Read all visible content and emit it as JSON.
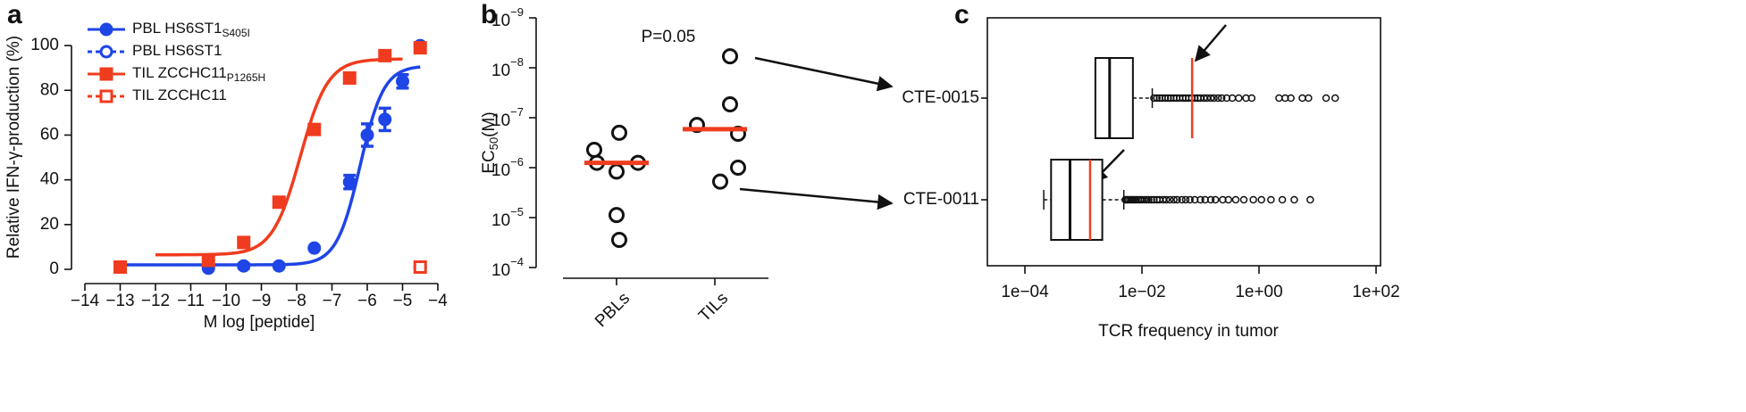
{
  "chart_data": [
    {
      "type": "dose-response",
      "panel": "a",
      "x_label": "M log [peptide]",
      "y_label": "Relative IFN-γ-production (%)",
      "xlim": [
        -14,
        -4
      ],
      "xticks": [
        {
          "value": -14,
          "label": "−14"
        },
        {
          "value": -13,
          "label": "−13"
        },
        {
          "value": -12,
          "label": "−12"
        },
        {
          "value": -11,
          "label": "−11"
        },
        {
          "value": -10,
          "label": "−10"
        },
        {
          "value": -9,
          "label": "−9"
        },
        {
          "value": -8,
          "label": "−8"
        },
        {
          "value": -7,
          "label": "−7"
        },
        {
          "value": -6,
          "label": "−6"
        },
        {
          "value": -5,
          "label": "−5"
        },
        {
          "value": -4,
          "label": "−4"
        }
      ],
      "ylim": [
        0,
        110
      ],
      "yticks": [
        0,
        20,
        40,
        60,
        80,
        100
      ],
      "series": [
        {
          "name": "PBL HS6ST1",
          "name_sub": "S405I",
          "color": "#1f45e6",
          "marker": "circle",
          "filled": true,
          "x": [
            -13,
            -10.5,
            -9.5,
            -8.5,
            -7.5,
            -6.5,
            -6,
            -5.5,
            -5,
            -4.5
          ],
          "values": [
            1,
            0.5,
            1.5,
            1.5,
            9.5,
            39,
            60,
            67,
            84,
            100
          ],
          "errors": [
            0,
            0,
            1,
            0,
            0,
            3,
            5,
            5,
            3,
            0
          ],
          "fit": {
            "bottom": 2,
            "top": 91,
            "log_ec50": -6.2,
            "hill": 1.3,
            "from": -13,
            "to": -4.5
          }
        },
        {
          "name": "PBL HS6ST1",
          "color": "#1f45e6",
          "marker": "circle",
          "filled": false,
          "x": [
            -4.5
          ],
          "values": [
            1
          ]
        },
        {
          "name": "TIL ZCCHC11",
          "name_sub": "P1265H",
          "color": "#f03c1e",
          "marker": "square",
          "filled": true,
          "x": [
            -13,
            -10.5,
            -9.5,
            -8.5,
            -7.5,
            -6.5,
            -5.5,
            -4.5
          ],
          "values": [
            1,
            4,
            12,
            30,
            62.5,
            85.5,
            95.5,
            99
          ],
          "fit": {
            "bottom": 6.5,
            "top": 94,
            "log_ec50": -7.9,
            "hill": 1.1,
            "from": -12,
            "to": -5
          }
        },
        {
          "name": "TIL ZCCHC11",
          "color": "#f03c1e",
          "marker": "square",
          "filled": false,
          "x": [
            -4.5
          ],
          "values": [
            1
          ]
        }
      ]
    },
    {
      "type": "strip",
      "panel": "b",
      "y_label": {
        "text": "EC",
        "sub": "50",
        "unit": "(M)"
      },
      "annotation": "P=0.05",
      "log_y": true,
      "ylim": [
        0.0001,
        1e-09
      ],
      "yticks": [
        {
          "value": 1e-09,
          "label": "10",
          "power": "−9"
        },
        {
          "value": 1e-08,
          "label": "10",
          "power": "−8"
        },
        {
          "value": 1e-07,
          "label": "10",
          "power": "−7"
        },
        {
          "value": 1e-06,
          "label": "10",
          "power": "−6"
        },
        {
          "value": 1e-05,
          "label": "10",
          "power": "−5"
        },
        {
          "value": 0.0001,
          "label": "10",
          "power": "−4"
        }
      ],
      "categories": [
        "PBLs",
        "TILs"
      ],
      "groups": [
        {
          "values": [
            2e-07,
            4.4e-07,
            8e-07,
            8e-07,
            1.2e-06,
            8.9e-06,
            2.8e-05
          ],
          "median": 8e-07
        },
        {
          "values": [
            5.9e-09,
            5.4e-08,
            1.4e-07,
            2.1e-07,
            1e-06,
            1.9e-06
          ],
          "median": 1.7e-07
        }
      ],
      "median_color": "#f03c1e"
    },
    {
      "type": "box",
      "panel": "c",
      "x_label": "TCR frequency in tumor",
      "log_x": true,
      "xlim": [
        0.0001,
        100
      ],
      "xticks": [
        {
          "value": 0.0001,
          "label": "1e−04"
        },
        {
          "value": 0.01,
          "label": "1e−02"
        },
        {
          "value": 1,
          "label": "1e+00"
        },
        {
          "value": 100,
          "label": "1e+02"
        }
      ],
      "categories": [
        "CTE-0015",
        "CTE-0011"
      ],
      "marker_color": "#f03c1e",
      "boxes": [
        {
          "min": 0.0016,
          "q1": 0.0016,
          "median": 0.0028,
          "q3": 0.007,
          "max": 0.015,
          "marker": 0.072,
          "outliers": [
            0.016,
            0.018,
            0.02,
            0.022,
            0.025,
            0.028,
            0.031,
            0.035,
            0.039,
            0.044,
            0.05,
            0.056,
            0.063,
            0.071,
            0.08,
            0.09,
            0.1,
            0.115,
            0.13,
            0.15,
            0.17,
            0.2,
            0.23,
            0.28,
            0.35,
            0.45,
            0.6,
            0.75,
            2.2,
            2.8,
            3.5,
            5.5,
            7,
            14,
            20
          ]
        },
        {
          "min": 0.00021,
          "q1": 0.00028,
          "median": 0.00059,
          "q3": 0.0021,
          "max": 0.0049,
          "marker": 0.0013,
          "outliers": [
            0.0052,
            0.0055,
            0.0058,
            0.0062,
            0.0066,
            0.007,
            0.0075,
            0.008,
            0.0086,
            0.0093,
            0.01,
            0.011,
            0.012,
            0.013,
            0.0145,
            0.016,
            0.018,
            0.02,
            0.023,
            0.026,
            0.03,
            0.035,
            0.04,
            0.048,
            0.056,
            0.066,
            0.08,
            0.1,
            0.12,
            0.15,
            0.18,
            0.24,
            0.3,
            0.4,
            0.55,
            0.8,
            1.1,
            1.6,
            2.5,
            4,
            7.5
          ]
        }
      ]
    }
  ]
}
